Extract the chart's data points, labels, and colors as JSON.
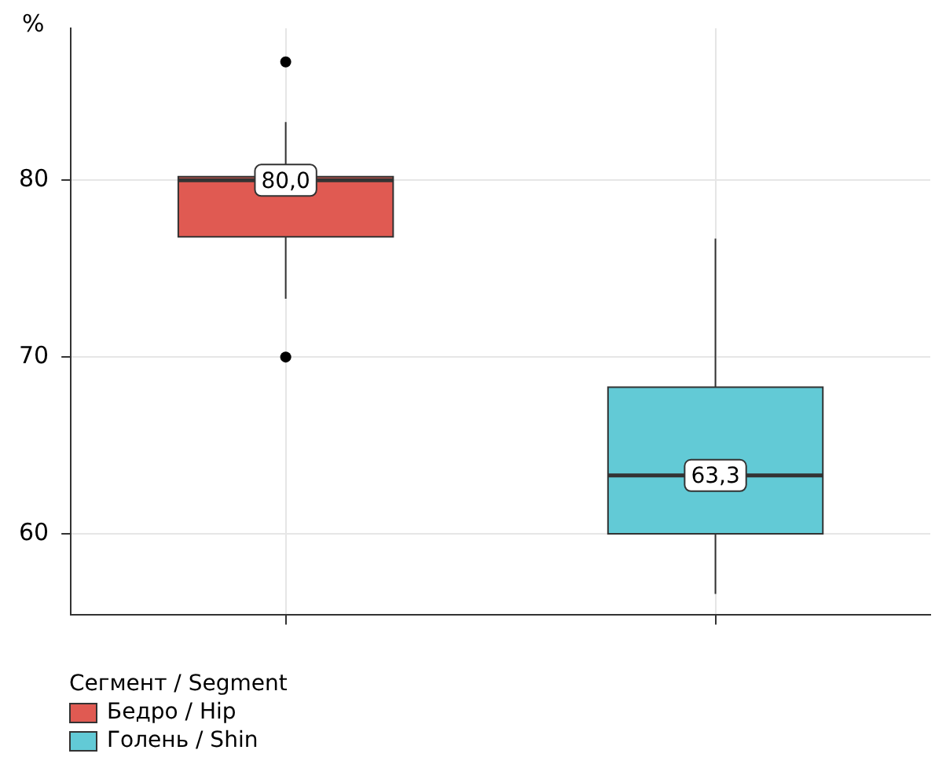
{
  "chart_data": {
    "type": "box",
    "ylabel": "%",
    "legend_title": "Сегмент / Segment",
    "categories": [
      null,
      null
    ],
    "series": [
      {
        "name": "Бедро / Hip",
        "color": "#e05a52",
        "boxes": [
          {
            "low": 73.3,
            "q1": 76.8,
            "median": 80.0,
            "q3": 80.2,
            "high": 83.3,
            "outliers": [
              86.7,
              70.0
            ]
          },
          null
        ]
      },
      {
        "name": "Голень / Shin",
        "color": "#62cad6",
        "boxes": [
          null,
          {
            "low": 56.6,
            "q1": 60.0,
            "median": 63.3,
            "q3": 68.3,
            "high": 76.7
          }
        ]
      }
    ],
    "value_labels": [
      "80,0",
      "63,3"
    ],
    "ylim": [
      55.4,
      88.6
    ],
    "yticks": [
      60,
      70,
      80
    ],
    "grid": true,
    "legend": "bottom left"
  }
}
